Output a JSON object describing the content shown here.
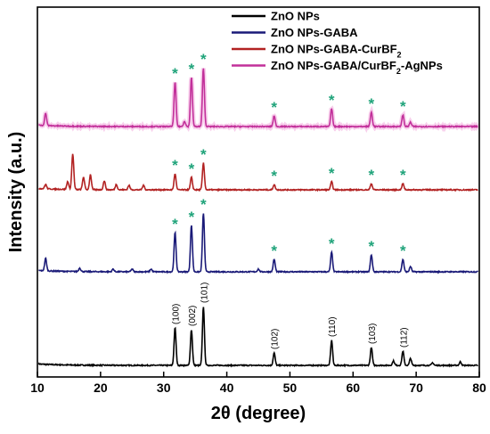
{
  "chart_data": {
    "type": "line",
    "xlabel": "2θ (degree)",
    "ylabel": "Intensity (a.u.)",
    "xlim": [
      10,
      80
    ],
    "x_ticks": [
      10,
      20,
      30,
      40,
      50,
      60,
      70,
      80
    ],
    "y_ticks_shown": false,
    "grid": false,
    "legend_placement": "top-right",
    "series": [
      {
        "name": "ZnO NPs",
        "color": "#000000",
        "offset": 0,
        "peaks": [
          {
            "x": 31.8,
            "y": 42
          },
          {
            "x": 34.4,
            "y": 40
          },
          {
            "x": 36.3,
            "y": 66
          },
          {
            "x": 47.5,
            "y": 14
          },
          {
            "x": 56.6,
            "y": 28
          },
          {
            "x": 62.9,
            "y": 20
          },
          {
            "x": 66.4,
            "y": 5
          },
          {
            "x": 67.9,
            "y": 16
          },
          {
            "x": 69.1,
            "y": 8
          },
          {
            "x": 72.6,
            "y": 3
          },
          {
            "x": 77.0,
            "y": 4
          }
        ],
        "peak_labels": [
          {
            "x": 31.8,
            "label": "(100)"
          },
          {
            "x": 34.4,
            "label": "(002)"
          },
          {
            "x": 36.3,
            "label": "(101)"
          },
          {
            "x": 47.5,
            "label": "(102)"
          },
          {
            "x": 56.6,
            "label": "(110)"
          },
          {
            "x": 62.9,
            "label": "(103)"
          },
          {
            "x": 67.9,
            "label": "(112)"
          }
        ]
      },
      {
        "name": "ZnO NPs-GABA",
        "color": "#1a1a78",
        "offset": 105,
        "peaks": [
          {
            "x": 11.3,
            "y": 14
          },
          {
            "x": 16.7,
            "y": 4
          },
          {
            "x": 22.0,
            "y": 3
          },
          {
            "x": 25.0,
            "y": 3
          },
          {
            "x": 28.0,
            "y": 3
          },
          {
            "x": 31.8,
            "y": 44
          },
          {
            "x": 34.4,
            "y": 52
          },
          {
            "x": 36.3,
            "y": 66
          },
          {
            "x": 45.0,
            "y": 3
          },
          {
            "x": 47.5,
            "y": 14
          },
          {
            "x": 56.6,
            "y": 22
          },
          {
            "x": 62.9,
            "y": 19
          },
          {
            "x": 67.9,
            "y": 14
          },
          {
            "x": 69.1,
            "y": 6
          }
        ],
        "markers": [
          31.8,
          34.4,
          36.3,
          47.5,
          56.6,
          62.9,
          67.9
        ]
      },
      {
        "name": "ZnO NPs-GABA-CurBF",
        "name_subscript": "2",
        "color": "#b22222",
        "offset": 197,
        "peaks": [
          {
            "x": 11.3,
            "y": 5
          },
          {
            "x": 14.8,
            "y": 9
          },
          {
            "x": 15.6,
            "y": 40
          },
          {
            "x": 17.3,
            "y": 14
          },
          {
            "x": 18.4,
            "y": 17
          },
          {
            "x": 20.6,
            "y": 10
          },
          {
            "x": 22.5,
            "y": 6
          },
          {
            "x": 24.5,
            "y": 5
          },
          {
            "x": 26.8,
            "y": 5
          },
          {
            "x": 31.8,
            "y": 18
          },
          {
            "x": 34.4,
            "y": 14
          },
          {
            "x": 36.3,
            "y": 30
          },
          {
            "x": 47.5,
            "y": 6
          },
          {
            "x": 56.6,
            "y": 9
          },
          {
            "x": 62.9,
            "y": 7
          },
          {
            "x": 67.9,
            "y": 7
          }
        ],
        "markers": [
          31.8,
          34.4,
          36.3,
          47.5,
          56.6,
          62.9,
          67.9
        ]
      },
      {
        "name": "ZnO NPs-GABA/CurBF",
        "name_subscript": "2",
        "name_suffix": "-AgNPs",
        "color": "#c2309a",
        "offset": 268,
        "peaks": [
          {
            "x": 11.3,
            "y": 14
          },
          {
            "x": 31.8,
            "y": 50
          },
          {
            "x": 33.3,
            "y": 6
          },
          {
            "x": 34.4,
            "y": 55
          },
          {
            "x": 36.3,
            "y": 66
          },
          {
            "x": 47.5,
            "y": 12
          },
          {
            "x": 56.6,
            "y": 20
          },
          {
            "x": 62.9,
            "y": 16
          },
          {
            "x": 67.9,
            "y": 13
          },
          {
            "x": 69.1,
            "y": 5
          }
        ],
        "markers": [
          31.8,
          34.4,
          36.3,
          47.5,
          56.6,
          62.9,
          67.9
        ]
      }
    ],
    "marker_symbol": "*",
    "marker_color": "#1fa37a"
  }
}
